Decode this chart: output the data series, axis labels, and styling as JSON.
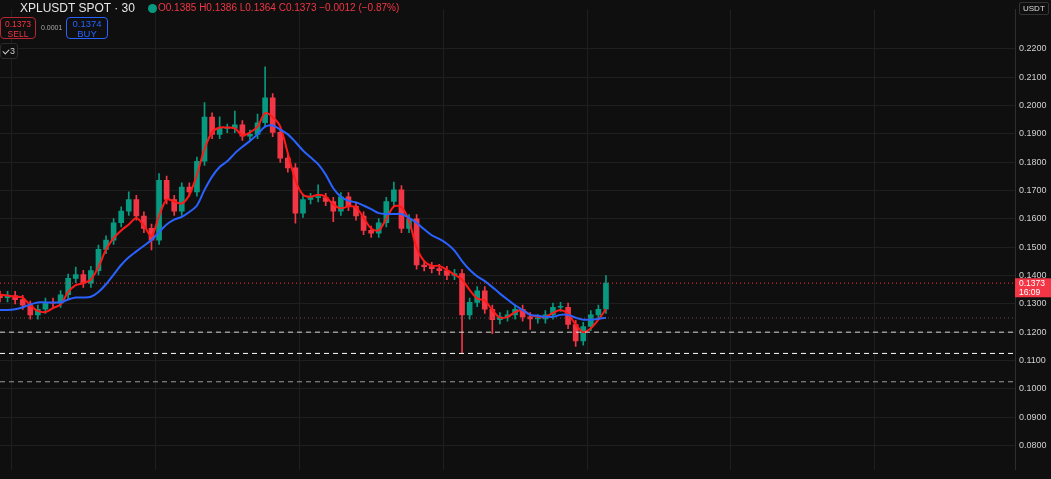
{
  "chart_data": {
    "type": "candlestick",
    "title": "XPLUSDT SPOT · 30",
    "subtitle": "O0.1385 H0.1386 L0.1364 C0.1373 −0.0012 (−0.87%)",
    "ylabel": "USDT",
    "annotations": [
      "0.1373",
      "SELL",
      "0.0001",
      "0.1374",
      "BUY",
      "3"
    ],
    "categories": [
      null,
      null,
      null,
      null,
      null,
      null,
      null,
      null,
      null,
      null,
      null,
      null,
      null,
      null,
      null,
      null,
      null,
      null,
      null,
      null,
      null,
      null,
      null,
      null,
      null,
      null,
      null,
      null,
      null,
      null,
      null,
      null,
      null,
      null,
      null,
      null,
      null,
      null,
      null,
      null,
      null,
      null,
      null,
      null,
      null,
      null,
      null,
      null,
      null,
      null,
      null,
      null,
      null,
      null,
      null,
      null,
      null,
      null,
      null,
      null,
      null,
      null,
      null,
      null,
      null,
      null,
      null,
      null,
      null,
      null,
      null,
      null,
      null,
      null,
      null,
      null,
      null,
      null,
      null,
      null,
      null,
      null,
      null,
      null,
      null,
      null,
      null,
      null,
      null,
      null,
      null,
      null,
      null,
      null,
      null,
      null,
      null,
      null,
      null,
      null,
      null,
      null,
      null,
      null,
      null,
      null,
      null,
      null,
      null,
      null,
      null,
      null,
      null,
      null,
      null,
      null,
      null,
      null,
      null,
      null,
      null,
      null,
      null,
      null,
      null,
      null,
      null,
      null,
      null,
      null,
      null,
      null,
      null,
      null,
      null
    ],
    "ohlc": [
      [
        0.133,
        0.1345,
        0.1307,
        0.1322
      ],
      [
        0.1322,
        0.1344,
        0.1307,
        0.1329
      ],
      [
        0.1329,
        0.1344,
        0.13,
        0.1315
      ],
      [
        0.1315,
        0.133,
        0.128,
        0.1295
      ],
      [
        0.1295,
        0.131,
        0.1246,
        0.1261
      ],
      [
        0.1261,
        0.1296,
        0.1246,
        0.1281
      ],
      [
        0.1281,
        0.132,
        0.1266,
        0.1305
      ],
      [
        0.1305,
        0.132,
        0.1287,
        0.1302
      ],
      [
        0.1302,
        0.1347,
        0.1287,
        0.1332
      ],
      [
        0.1332,
        0.1405,
        0.1317,
        0.139
      ],
      [
        0.139,
        0.143,
        0.1375,
        0.1403
      ],
      [
        0.1403,
        0.1418,
        0.1358,
        0.1373
      ],
      [
        0.1373,
        0.1432,
        0.1358,
        0.1417
      ],
      [
        0.1417,
        0.1507,
        0.1402,
        0.1492
      ],
      [
        0.1492,
        0.154,
        0.1477,
        0.1525
      ],
      [
        0.1525,
        0.1601,
        0.151,
        0.1586
      ],
      [
        0.1586,
        0.1642,
        0.1571,
        0.1627
      ],
      [
        0.1627,
        0.1695,
        0.1612,
        0.1668
      ],
      [
        0.1668,
        0.1683,
        0.1595,
        0.161
      ],
      [
        0.161,
        0.1625,
        0.1551,
        0.1566
      ],
      [
        0.1566,
        0.1581,
        0.149,
        0.1525
      ],
      [
        0.1525,
        0.176,
        0.151,
        0.1736
      ],
      [
        0.1736,
        0.1751,
        0.1653,
        0.1668
      ],
      [
        0.1668,
        0.1683,
        0.1612,
        0.1627
      ],
      [
        0.1627,
        0.1727,
        0.1612,
        0.1712
      ],
      [
        0.1712,
        0.1727,
        0.168,
        0.1695
      ],
      [
        0.1695,
        0.1818,
        0.168,
        0.1803
      ],
      [
        0.1803,
        0.201,
        0.1788,
        0.1959
      ],
      [
        0.1959,
        0.1974,
        0.1883,
        0.1898
      ],
      [
        0.1898,
        0.196,
        0.1883,
        0.1919
      ],
      [
        0.1919,
        0.1934,
        0.1904,
        0.1919
      ],
      [
        0.1919,
        0.198,
        0.1904,
        0.1932
      ],
      [
        0.1932,
        0.1947,
        0.1877,
        0.1892
      ],
      [
        0.1892,
        0.1913,
        0.1877,
        0.1898
      ],
      [
        0.1898,
        0.197,
        0.1883,
        0.1939
      ],
      [
        0.1939,
        0.2136,
        0.1924,
        0.2027
      ],
      [
        0.2027,
        0.2042,
        0.189,
        0.1905
      ],
      [
        0.1905,
        0.192,
        0.1799,
        0.1814
      ],
      [
        0.1814,
        0.1829,
        0.1765,
        0.178
      ],
      [
        0.178,
        0.1795,
        0.1585,
        0.162
      ],
      [
        0.162,
        0.1683,
        0.1605,
        0.1668
      ],
      [
        0.1668,
        0.169,
        0.1653,
        0.1675
      ],
      [
        0.1675,
        0.172,
        0.166,
        0.1675
      ],
      [
        0.1675,
        0.169,
        0.1646,
        0.1661
      ],
      [
        0.1661,
        0.1676,
        0.159,
        0.1627
      ],
      [
        0.1627,
        0.1693,
        0.1612,
        0.1678
      ],
      [
        0.1678,
        0.1693,
        0.1629,
        0.1644
      ],
      [
        0.1644,
        0.1659,
        0.1595,
        0.161
      ],
      [
        0.161,
        0.1625,
        0.1544,
        0.1559
      ],
      [
        0.1559,
        0.1574,
        0.1534,
        0.1549
      ],
      [
        0.1549,
        0.1601,
        0.1534,
        0.1586
      ],
      [
        0.1586,
        0.1676,
        0.1571,
        0.1661
      ],
      [
        0.1661,
        0.173,
        0.1646,
        0.1702
      ],
      [
        0.1702,
        0.1717,
        0.1551,
        0.1566
      ],
      [
        0.1566,
        0.1615,
        0.1551,
        0.16
      ],
      [
        0.16,
        0.1615,
        0.1422,
        0.1437
      ],
      [
        0.1437,
        0.1452,
        0.1416,
        0.1431
      ],
      [
        0.1431,
        0.1446,
        0.1409,
        0.1424
      ],
      [
        0.1424,
        0.1439,
        0.1402,
        0.1417
      ],
      [
        0.1417,
        0.1432,
        0.1385,
        0.14
      ],
      [
        0.14,
        0.1422,
        0.1385,
        0.1407
      ],
      [
        0.1407,
        0.1422,
        0.1125,
        0.1261
      ],
      [
        0.1261,
        0.132,
        0.1246,
        0.1305
      ],
      [
        0.1305,
        0.1361,
        0.129,
        0.1346
      ],
      [
        0.1346,
        0.1361,
        0.1266,
        0.1281
      ],
      [
        0.1281,
        0.1296,
        0.1195,
        0.1244
      ],
      [
        0.1244,
        0.1269,
        0.1229,
        0.1254
      ],
      [
        0.1254,
        0.1276,
        0.1239,
        0.1261
      ],
      [
        0.1261,
        0.1296,
        0.1246,
        0.1281
      ],
      [
        0.1281,
        0.1296,
        0.1239,
        0.1254
      ],
      [
        0.1254,
        0.1269,
        0.121,
        0.1247
      ],
      [
        0.1247,
        0.1262,
        0.1232,
        0.1247
      ],
      [
        0.1247,
        0.1276,
        0.1232,
        0.1261
      ],
      [
        0.1261,
        0.1303,
        0.1246,
        0.1288
      ],
      [
        0.1288,
        0.1305,
        0.1273,
        0.1288
      ],
      [
        0.1288,
        0.1303,
        0.1212,
        0.1227
      ],
      [
        0.1227,
        0.1242,
        0.115,
        0.1169
      ],
      [
        0.1169,
        0.1235,
        0.1154,
        0.122
      ],
      [
        0.122,
        0.1276,
        0.1205,
        0.1261
      ],
      [
        0.1261,
        0.1296,
        0.1246,
        0.1281
      ],
      [
        0.1281,
        0.14,
        0.1266,
        0.1373
      ],
      null,
      null,
      null,
      null,
      null,
      null,
      null,
      null,
      null,
      null,
      null,
      null,
      null,
      null,
      null,
      null,
      null,
      null,
      null,
      null,
      null,
      null,
      null,
      null,
      null,
      null,
      null,
      null,
      null,
      null,
      null,
      null,
      null,
      null,
      null,
      null,
      null,
      null,
      null,
      null,
      null,
      null,
      null,
      null,
      null,
      null,
      null,
      null,
      null,
      null,
      null,
      null,
      null,
      null
    ],
    "series": [
      {
        "type": "line",
        "color": "#2962ff",
        "values": [
          0.1278,
          0.1278,
          0.1281,
          0.1288,
          0.1298,
          0.1305,
          0.1305,
          0.1305,
          0.1305,
          0.1315,
          0.1322,
          0.1322,
          0.1325,
          0.1342,
          0.1369,
          0.1403,
          0.1437,
          0.1464,
          0.1485,
          0.1505,
          0.1525,
          0.1553,
          0.158,
          0.1597,
          0.1607,
          0.1624,
          0.1647,
          0.1702,
          0.1749,
          0.1783,
          0.1803,
          0.1831,
          0.1854,
          0.1875,
          0.1898,
          0.1925,
          0.1929,
          0.1915,
          0.1898,
          0.1871,
          0.1841,
          0.1817,
          0.1793,
          0.1756,
          0.1708,
          0.1678,
          0.1664,
          0.1658,
          0.1647,
          0.1634,
          0.162,
          0.1617,
          0.1617,
          0.1617,
          0.1603,
          0.1586,
          0.1563,
          0.1542,
          0.1529,
          0.1512,
          0.1488,
          0.1451,
          0.142,
          0.1397,
          0.138,
          0.1359,
          0.1336,
          0.1315,
          0.1295,
          0.1278,
          0.1261,
          0.1258,
          0.1254,
          0.1254,
          0.1261,
          0.1261,
          0.1251,
          0.1244,
          0.1244,
          0.1247,
          0.1251,
          null,
          null,
          null,
          null,
          null,
          null,
          null,
          null,
          null,
          null,
          null,
          null,
          null,
          null,
          null,
          null,
          null,
          null,
          null,
          null,
          null,
          null,
          null,
          null,
          null,
          null,
          null,
          null,
          null,
          null,
          null,
          null,
          null,
          null,
          null,
          null,
          null,
          null,
          null,
          null,
          null,
          null,
          null,
          null,
          null,
          null,
          null,
          null,
          null,
          null,
          null,
          null,
          null,
          null
        ]
      },
      {
        "type": "line",
        "color": "#ff1a1a",
        "values": [
          0.1332,
          0.1329,
          0.1325,
          0.1322,
          0.1295,
          0.1275,
          0.1271,
          0.1285,
          0.1298,
          0.1342,
          0.1366,
          0.1373,
          0.1386,
          0.143,
          0.1492,
          0.1532,
          0.1559,
          0.158,
          0.1603,
          0.1576,
          0.1539,
          0.161,
          0.1668,
          0.1661,
          0.1654,
          0.1685,
          0.1756,
          0.1847,
          0.1905,
          0.1922,
          0.1922,
          0.1919,
          0.1895,
          0.1905,
          0.1925,
          0.1973,
          0.1959,
          0.1925,
          0.1831,
          0.1736,
          0.1685,
          0.1678,
          0.1685,
          0.1678,
          0.1651,
          0.1637,
          0.1644,
          0.1641,
          0.1603,
          0.1566,
          0.1559,
          0.16,
          0.1644,
          0.1641,
          0.1593,
          0.1498,
          0.1451,
          0.1434,
          0.1434,
          0.142,
          0.1403,
          0.1386,
          0.1349,
          0.1319,
          0.1312,
          0.1278,
          0.1251,
          0.1254,
          0.1271,
          0.1278,
          0.1261,
          0.1254,
          0.1254,
          0.1268,
          0.1278,
          0.1264,
          0.1227,
          0.12,
          0.1214,
          0.1244,
          0.1281,
          null,
          null,
          null,
          null,
          null,
          null,
          null,
          null,
          null,
          null,
          null,
          null,
          null,
          null,
          null,
          null,
          null,
          null,
          null,
          null,
          null,
          null,
          null,
          null,
          null,
          null,
          null,
          null,
          null,
          null,
          null,
          null,
          null,
          null,
          null,
          null,
          null,
          null,
          null,
          null,
          null,
          null,
          null,
          null,
          null,
          null,
          null,
          null,
          null,
          null,
          null,
          null,
          null,
          null
        ]
      }
    ],
    "ylim": [
      0.0715,
      0.2339
    ],
    "yticks": [
      {
        "value": 0.08,
        "label": "0.0800"
      },
      {
        "value": 0.09,
        "label": "0.0900"
      },
      {
        "value": 0.1,
        "label": "0.1000"
      },
      {
        "value": 0.11,
        "label": "0.1100"
      },
      {
        "value": 0.12,
        "label": "0.1200"
      },
      {
        "value": 0.13,
        "label": "0.1300"
      },
      {
        "value": 0.14,
        "label": "0.1400"
      },
      {
        "value": 0.15,
        "label": "0.1500"
      },
      {
        "value": 0.16,
        "label": "0.1600"
      },
      {
        "value": 0.17,
        "label": "0.1700"
      },
      {
        "value": 0.18,
        "label": "0.1800"
      },
      {
        "value": 0.19,
        "label": "0.1900"
      },
      {
        "value": 0.2,
        "label": "0.2000"
      },
      {
        "value": 0.21,
        "label": "0.2100"
      },
      {
        "value": 0.22,
        "label": "0.2200"
      }
    ],
    "ref_lines": [
      {
        "axis": "y",
        "value": 0.1373,
        "label": "0.1373 16:09",
        "color": "#f23645",
        "line_style": "dotted"
      },
      {
        "axis": "y",
        "value": 0.125,
        "color": "#6b4a4a",
        "line_style": "dotted"
      },
      {
        "axis": "y",
        "value": 0.12,
        "color": "#d8d8d8",
        "line_style": "dashed"
      },
      {
        "axis": "y",
        "value": 0.1125,
        "color": "#ffffff",
        "line_style": "dashed"
      },
      {
        "axis": "y",
        "value": 0.1025,
        "color": "#9a9a9a",
        "line_style": "dashed"
      }
    ],
    "grid": true,
    "legend": false,
    "tick_labels": "y"
  }
}
